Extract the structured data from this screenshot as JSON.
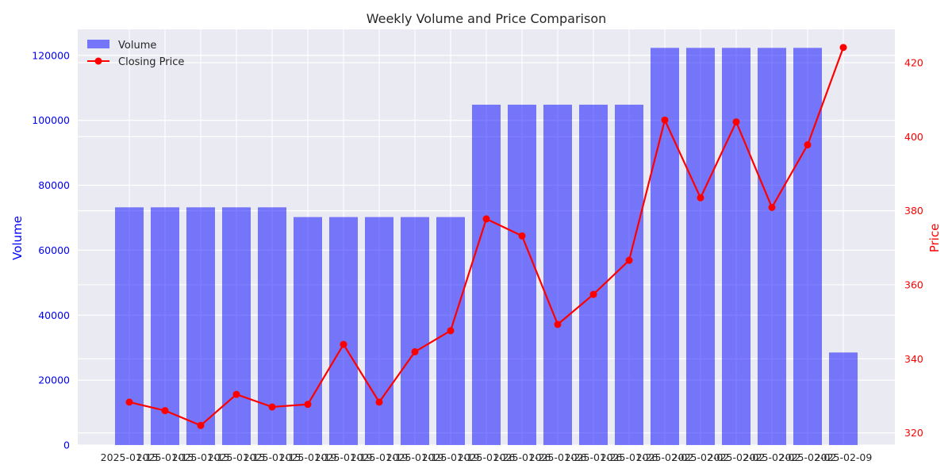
{
  "chart_data": {
    "type": "bar+line",
    "title": "Weekly Volume and Price Comparison",
    "xlabel": "",
    "ylabel_left": "Volume",
    "ylabel_right": "Price",
    "categories": [
      "2025-01-15",
      "2025-01-15",
      "2025-01-15",
      "2025-01-15",
      "2025-01-15",
      "2025-01-19",
      "2025-01-19",
      "2025-01-19",
      "2025-01-19",
      "2025-01-19",
      "2025-01-26",
      "2025-01-26",
      "2025-01-26",
      "2025-01-26",
      "2025-01-26",
      "2025-02-02",
      "2025-02-02",
      "2025-02-02",
      "2025-02-02",
      "2025-02-02",
      "2025-02-09"
    ],
    "x_tick_labels_shown": [
      "2025-01-15",
      "2025-01-15",
      "2025-01-15",
      "2025-01-15",
      "2025-01-15",
      "2025-01-19",
      "2025-01-19",
      "2025-01-19",
      "2025-01-19",
      "2025-01-19",
      "2025-01-26",
      "2025-01-26",
      "2025-01-26",
      "2025-01-26",
      "2025-01-26",
      "2025-02-02",
      "2025-02-02",
      "2025-02-02",
      "2025-02-02",
      "2025-02-02",
      "2025-02-09"
    ],
    "ylim_left": [
      0,
      128000
    ],
    "ylim_right": [
      316.7,
      429.0
    ],
    "yticks_left": [
      0,
      20000,
      40000,
      60000,
      80000,
      100000,
      120000
    ],
    "yticks_right": [
      320,
      340,
      360,
      380,
      400,
      420
    ],
    "grid": true,
    "legend_position": "top-left",
    "series": [
      {
        "name": "Volume",
        "kind": "bar",
        "axis": "left",
        "color": "#0000ff",
        "values": [
          73200,
          73200,
          73200,
          73200,
          73200,
          70200,
          70200,
          70200,
          70200,
          70200,
          104800,
          104800,
          104800,
          104800,
          104800,
          122300,
          122300,
          122300,
          122300,
          122300,
          28500
        ]
      },
      {
        "name": "Closing Price",
        "kind": "line",
        "axis": "right",
        "color": "#ff0000",
        "values": [
          328.3,
          326.0,
          322.0,
          330.4,
          327.0,
          327.7,
          343.9,
          328.3,
          341.9,
          347.6,
          377.8,
          373.2,
          349.3,
          357.4,
          366.6,
          404.5,
          383.5,
          404.0,
          380.9,
          397.8,
          424.1
        ]
      }
    ]
  },
  "colors": {
    "plot_background": "#eaeaf2",
    "grid": "#ffffff"
  }
}
